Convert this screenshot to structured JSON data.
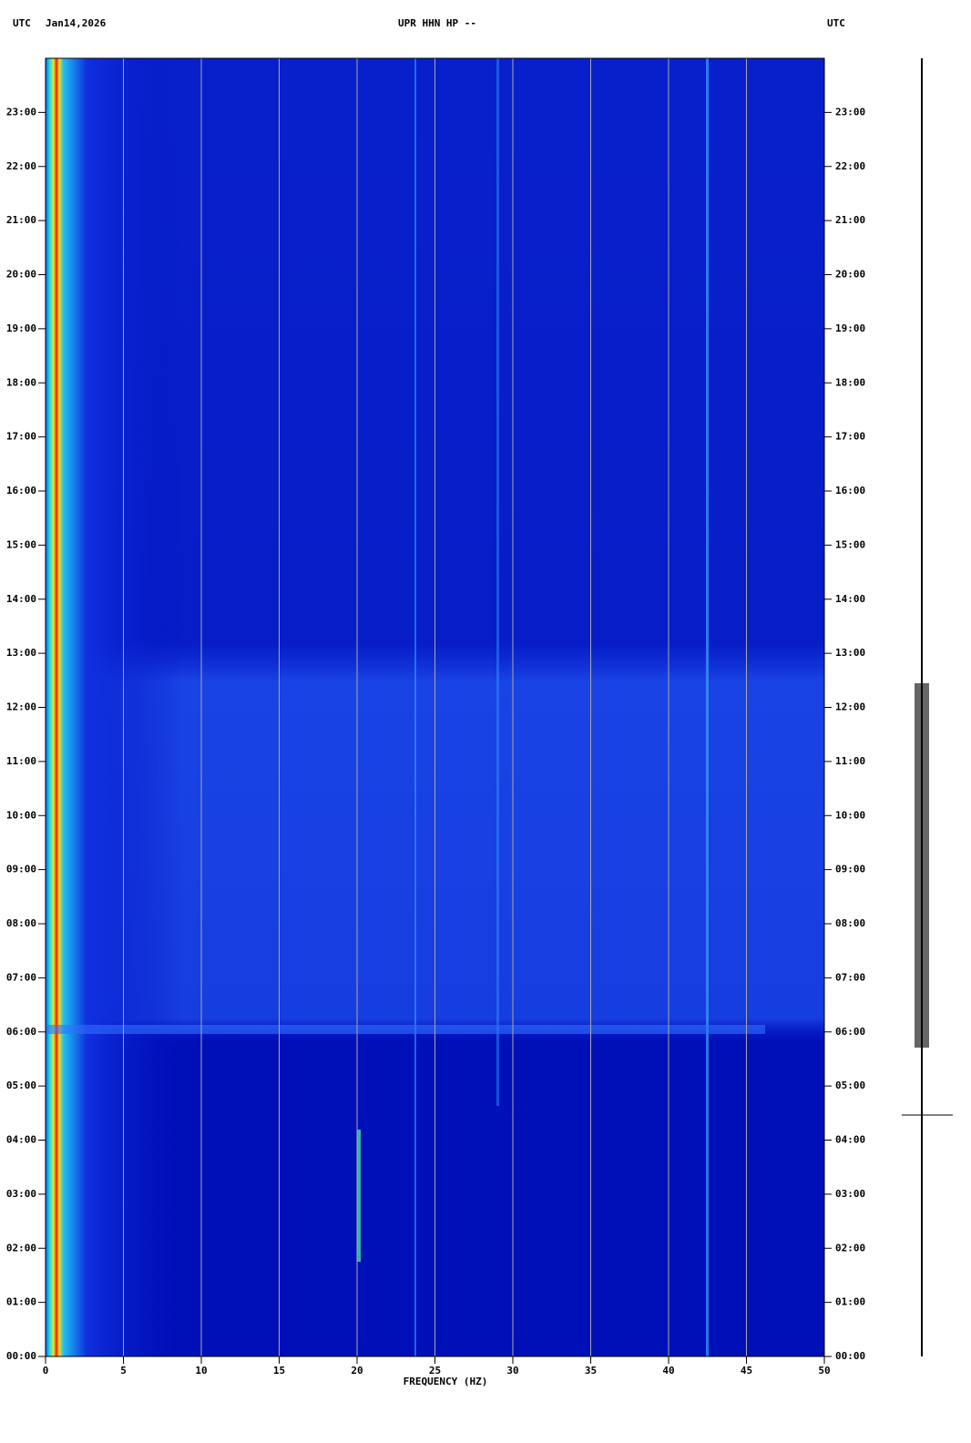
{
  "chart_data": {
    "type": "spectrogram",
    "title": "UPR HHN HP --",
    "date": "Jan14,2026",
    "left_time_label": "UTC",
    "right_time_label": "UTC",
    "xlabel": "FREQUENCY (HZ)",
    "xlim": [
      0,
      50
    ],
    "xticks": [
      0,
      5,
      10,
      15,
      20,
      25,
      30,
      35,
      40,
      45,
      50
    ],
    "ylim": [
      0,
      24
    ],
    "yticks": [
      {
        "value": 0,
        "label": "00:00"
      },
      {
        "value": 1,
        "label": "01:00"
      },
      {
        "value": 2,
        "label": "02:00"
      },
      {
        "value": 3,
        "label": "03:00"
      },
      {
        "value": 4,
        "label": "04:00"
      },
      {
        "value": 5,
        "label": "05:00"
      },
      {
        "value": 6,
        "label": "06:00"
      },
      {
        "value": 7,
        "label": "07:00"
      },
      {
        "value": 8,
        "label": "08:00"
      },
      {
        "value": 9,
        "label": "09:00"
      },
      {
        "value": 10,
        "label": "10:00"
      },
      {
        "value": 11,
        "label": "11:00"
      },
      {
        "value": 12,
        "label": "12:00"
      },
      {
        "value": 13,
        "label": "13:00"
      },
      {
        "value": 14,
        "label": "14:00"
      },
      {
        "value": 15,
        "label": "15:00"
      },
      {
        "value": 16,
        "label": "16:00"
      },
      {
        "value": 17,
        "label": "17:00"
      },
      {
        "value": 18,
        "label": "18:00"
      },
      {
        "value": 19,
        "label": "19:00"
      },
      {
        "value": 20,
        "label": "20:00"
      },
      {
        "value": 21,
        "label": "21:00"
      },
      {
        "value": 22,
        "label": "22:00"
      },
      {
        "value": 23,
        "label": "23:00"
      }
    ],
    "grid": true,
    "grid_color": "#a8a8a8"
  }
}
